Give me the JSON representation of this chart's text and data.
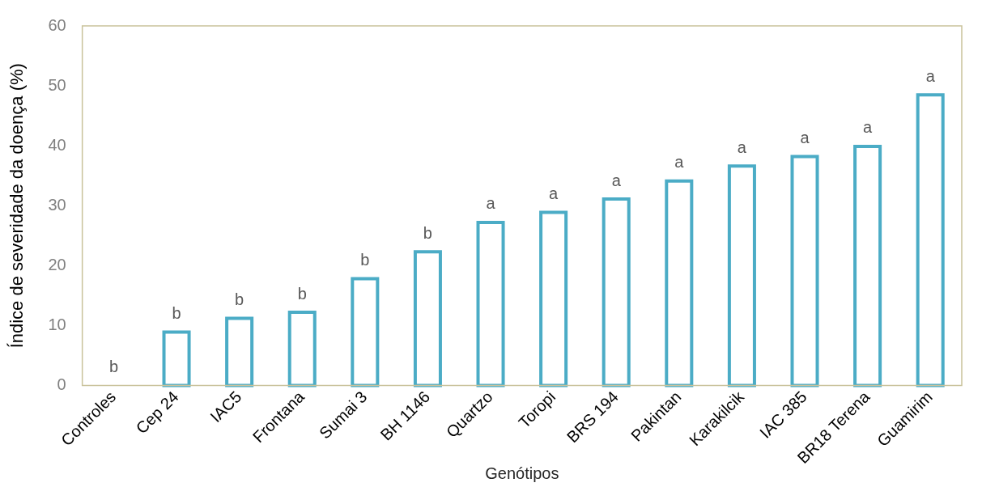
{
  "chart_data": {
    "type": "bar",
    "xlabel": "Genótipos",
    "ylabel": "Índice de severidade da doença (%)",
    "categories": [
      "Controles",
      "Cep 24",
      "IAC5",
      "Frontana",
      "Sumai 3",
      "BH 1146",
      "Quartzo",
      "Toropi",
      "BRS 194",
      "Pakintan",
      "Karakilcik",
      "IAC 385",
      "BR18 Terena",
      "Guamirim"
    ],
    "values": [
      0,
      8.9,
      11.2,
      12.2,
      17.8,
      22.3,
      27.2,
      28.9,
      31.1,
      34.1,
      36.6,
      38.2,
      39.9,
      48.5
    ],
    "color": "#4bacc6",
    "ylim": [
      0,
      60
    ],
    "yticks": [
      0,
      10,
      20,
      30,
      40,
      50,
      60
    ],
    "grid": false,
    "legend": false,
    "annotations": [
      {
        "text": "b",
        "x": "Controles",
        "y": 0
      },
      {
        "text": "b",
        "x": "Cep 24",
        "y": 8.9
      },
      {
        "text": "b",
        "x": "IAC5",
        "y": 11.2
      },
      {
        "text": "b",
        "x": "Frontana",
        "y": 12.2
      },
      {
        "text": "b",
        "x": "Sumai 3",
        "y": 17.8
      },
      {
        "text": "b",
        "x": "BH 1146",
        "y": 22.3
      },
      {
        "text": "a",
        "x": "Quartzo",
        "y": 27.2
      },
      {
        "text": "a",
        "x": "Toropi",
        "y": 28.9
      },
      {
        "text": "a",
        "x": "BRS 194",
        "y": 31.1
      },
      {
        "text": "a",
        "x": "Pakintan",
        "y": 34.1
      },
      {
        "text": "a",
        "x": "Karakilcik",
        "y": 36.6
      },
      {
        "text": "a",
        "x": "IAC 385",
        "y": 38.2
      },
      {
        "text": "a",
        "x": "BR18 Terena",
        "y": 39.9
      },
      {
        "text": "a",
        "x": "Guamirim",
        "y": 48.5
      }
    ]
  }
}
